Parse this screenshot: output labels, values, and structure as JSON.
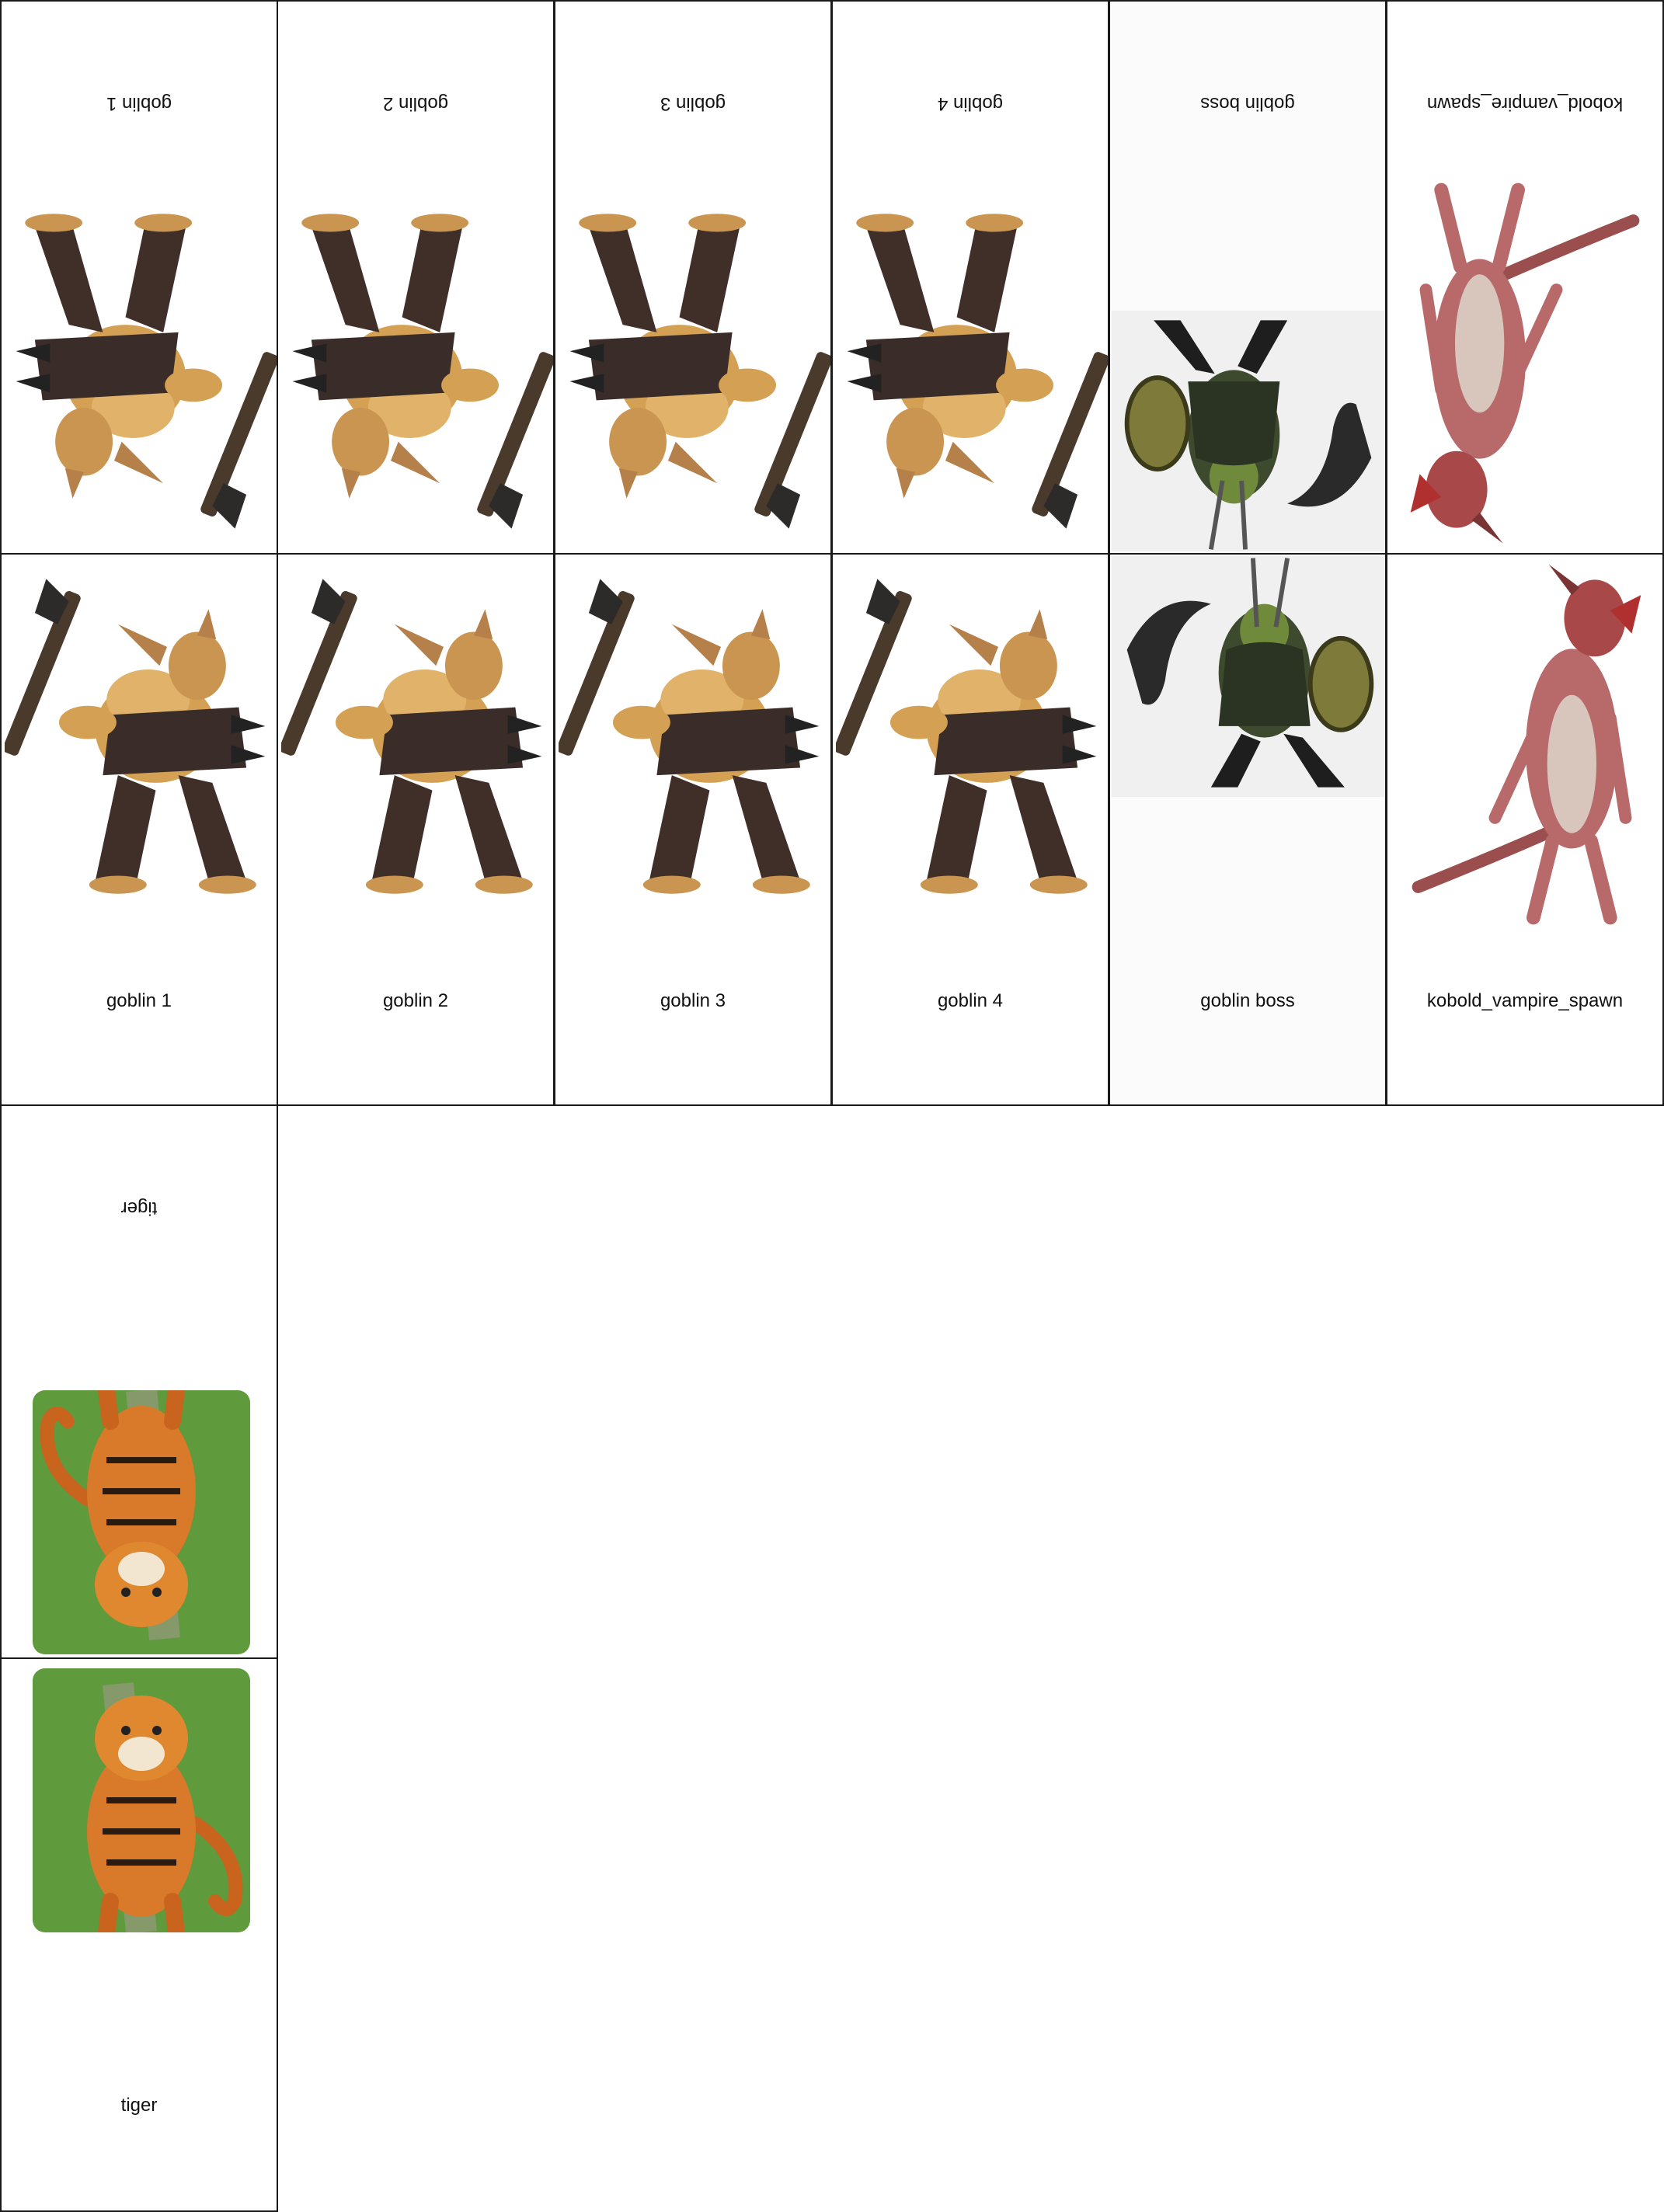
{
  "cards": [
    {
      "name": "goblin 1",
      "art": "goblin-illustration"
    },
    {
      "name": "goblin 2",
      "art": "goblin-illustration"
    },
    {
      "name": "goblin 3",
      "art": "goblin-illustration"
    },
    {
      "name": "goblin 4",
      "art": "goblin-illustration"
    },
    {
      "name": "goblin boss",
      "art": "goblin-boss-illustration"
    },
    {
      "name": "kobold_vampire_spawn",
      "art": "kobold-vampire-spawn-illustration"
    },
    {
      "name": "tiger",
      "art": "tiger-illustration"
    }
  ]
}
